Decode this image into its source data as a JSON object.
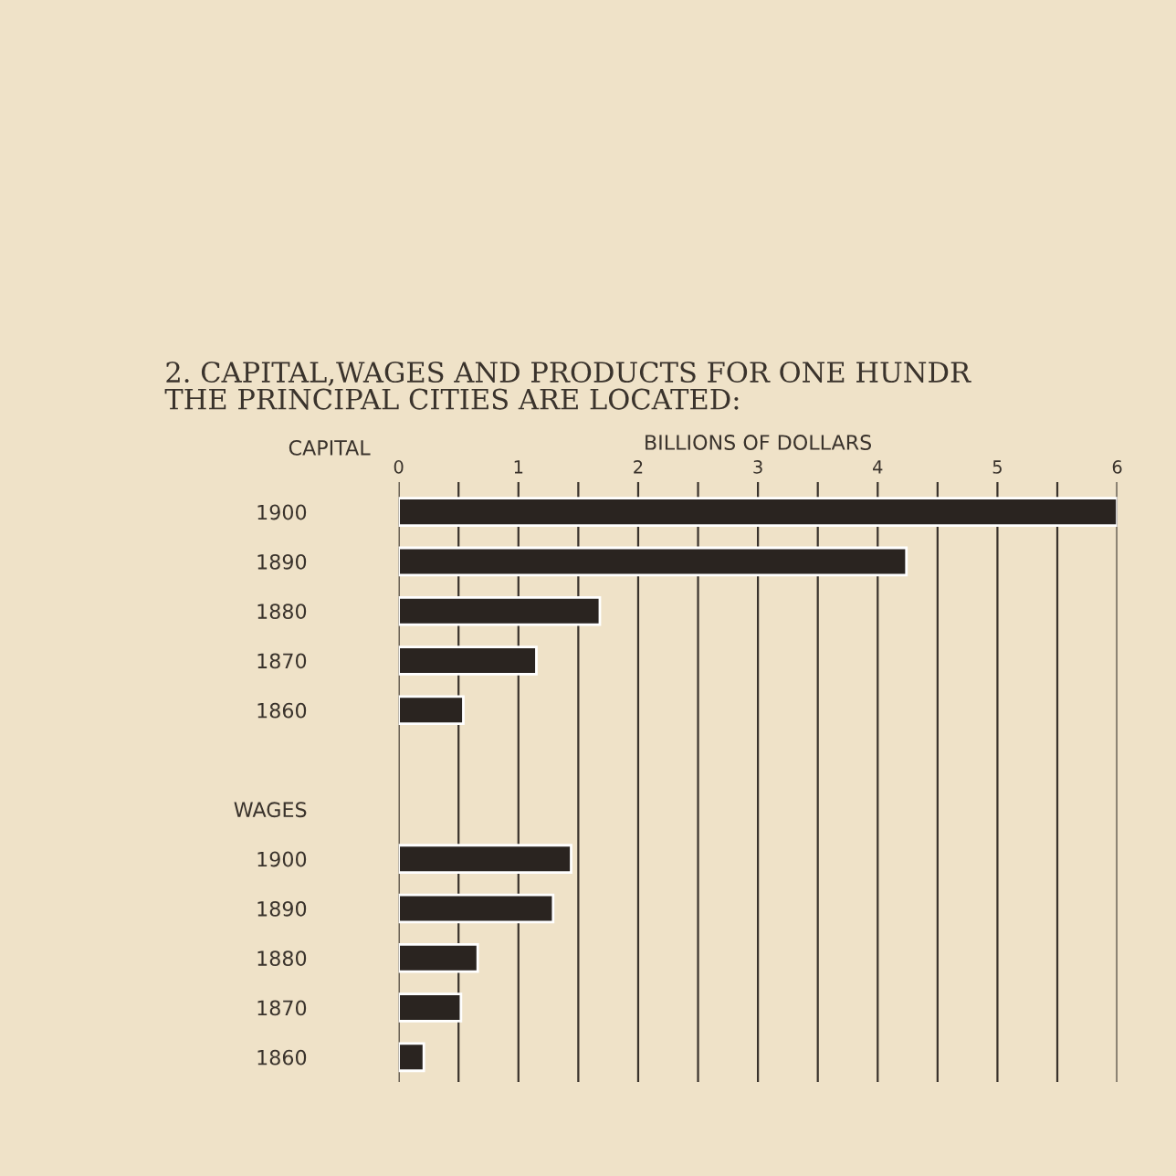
{
  "chart_data": {
    "type": "bar",
    "orientation": "horizontal",
    "title": "2. CAPITAL,WAGES AND PRODUCTS FOR ONE HUNDR\nTHE PRINCIPAL CITIES ARE LOCATED:",
    "xlabel": "BILLIONS OF DOLLARS",
    "annotations": [
      "CAPITAL"
    ],
    "categories": [
      "1900",
      "1890",
      "1880",
      "1870",
      "1860",
      null,
      "WAGES",
      "1900",
      "1890",
      "1880",
      "1870",
      "1860"
    ],
    "values": [
      6.0,
      4.24,
      1.68,
      1.15,
      0.54,
      null,
      null,
      1.44,
      1.29,
      0.66,
      0.52,
      0.21
    ],
    "color": "#2a2420",
    "xlim": [
      0,
      6
    ],
    "xticks": [
      0,
      {
        "value": 0.5,
        "label": null
      },
      1,
      {
        "value": 1.5,
        "label": null
      },
      2,
      {
        "value": 2.5,
        "label": null
      },
      3,
      {
        "value": 3.5,
        "label": null
      },
      4,
      {
        "value": 4.5,
        "label": null
      },
      5,
      {
        "value": 5.5,
        "label": null
      },
      6
    ],
    "grid": "x"
  }
}
